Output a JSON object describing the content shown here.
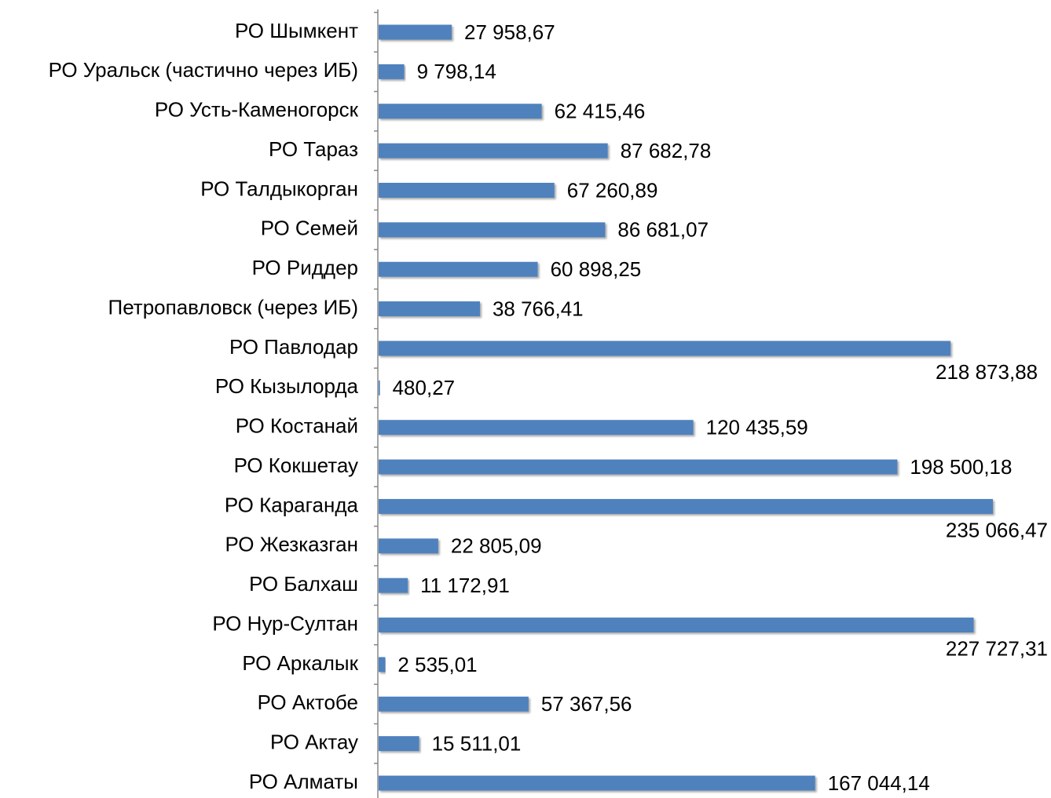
{
  "chart_data": {
    "type": "bar",
    "orientation": "horizontal",
    "categories": [
      "РО Шымкент",
      "РО Уральск (частично через ИБ)",
      "РО Усть-Каменогорск",
      "РО Тараз",
      "РО Талдыкорган",
      "РО Семей",
      "РО Риддер",
      "Петропавловск (через ИБ)",
      "РО Павлодар",
      "РО Кызылорда",
      "РО Костанай",
      "РО Кокшетау",
      "РО Караганда",
      "РО Жезказган",
      "РО Балхаш",
      "РО Нур-Султан",
      "РО Аркалык",
      "РО Актобе",
      "РО Актау",
      "РО Алматы"
    ],
    "values": [
      27958.67,
      9798.14,
      62415.46,
      87682.78,
      67260.89,
      86681.07,
      60898.25,
      38766.41,
      218873.88,
      480.27,
      120435.59,
      198500.18,
      235066.47,
      22805.09,
      11172.91,
      227727.31,
      2535.01,
      57367.56,
      15511.01,
      167044.14
    ],
    "value_labels": [
      "27 958,67",
      "9 798,14",
      "62 415,46",
      "87 682,78",
      "67 260,89",
      "86 681,07",
      "60 898,25",
      "38 766,41",
      "218 873,88",
      "480,27",
      "120 435,59",
      "198 500,18",
      "235 066,47",
      "22 805,09",
      "11 172,91",
      "227 727,31",
      "2 535,01",
      "57 367,56",
      "15 511,01",
      "167 044,14"
    ],
    "color": "#4f81bd"
  }
}
